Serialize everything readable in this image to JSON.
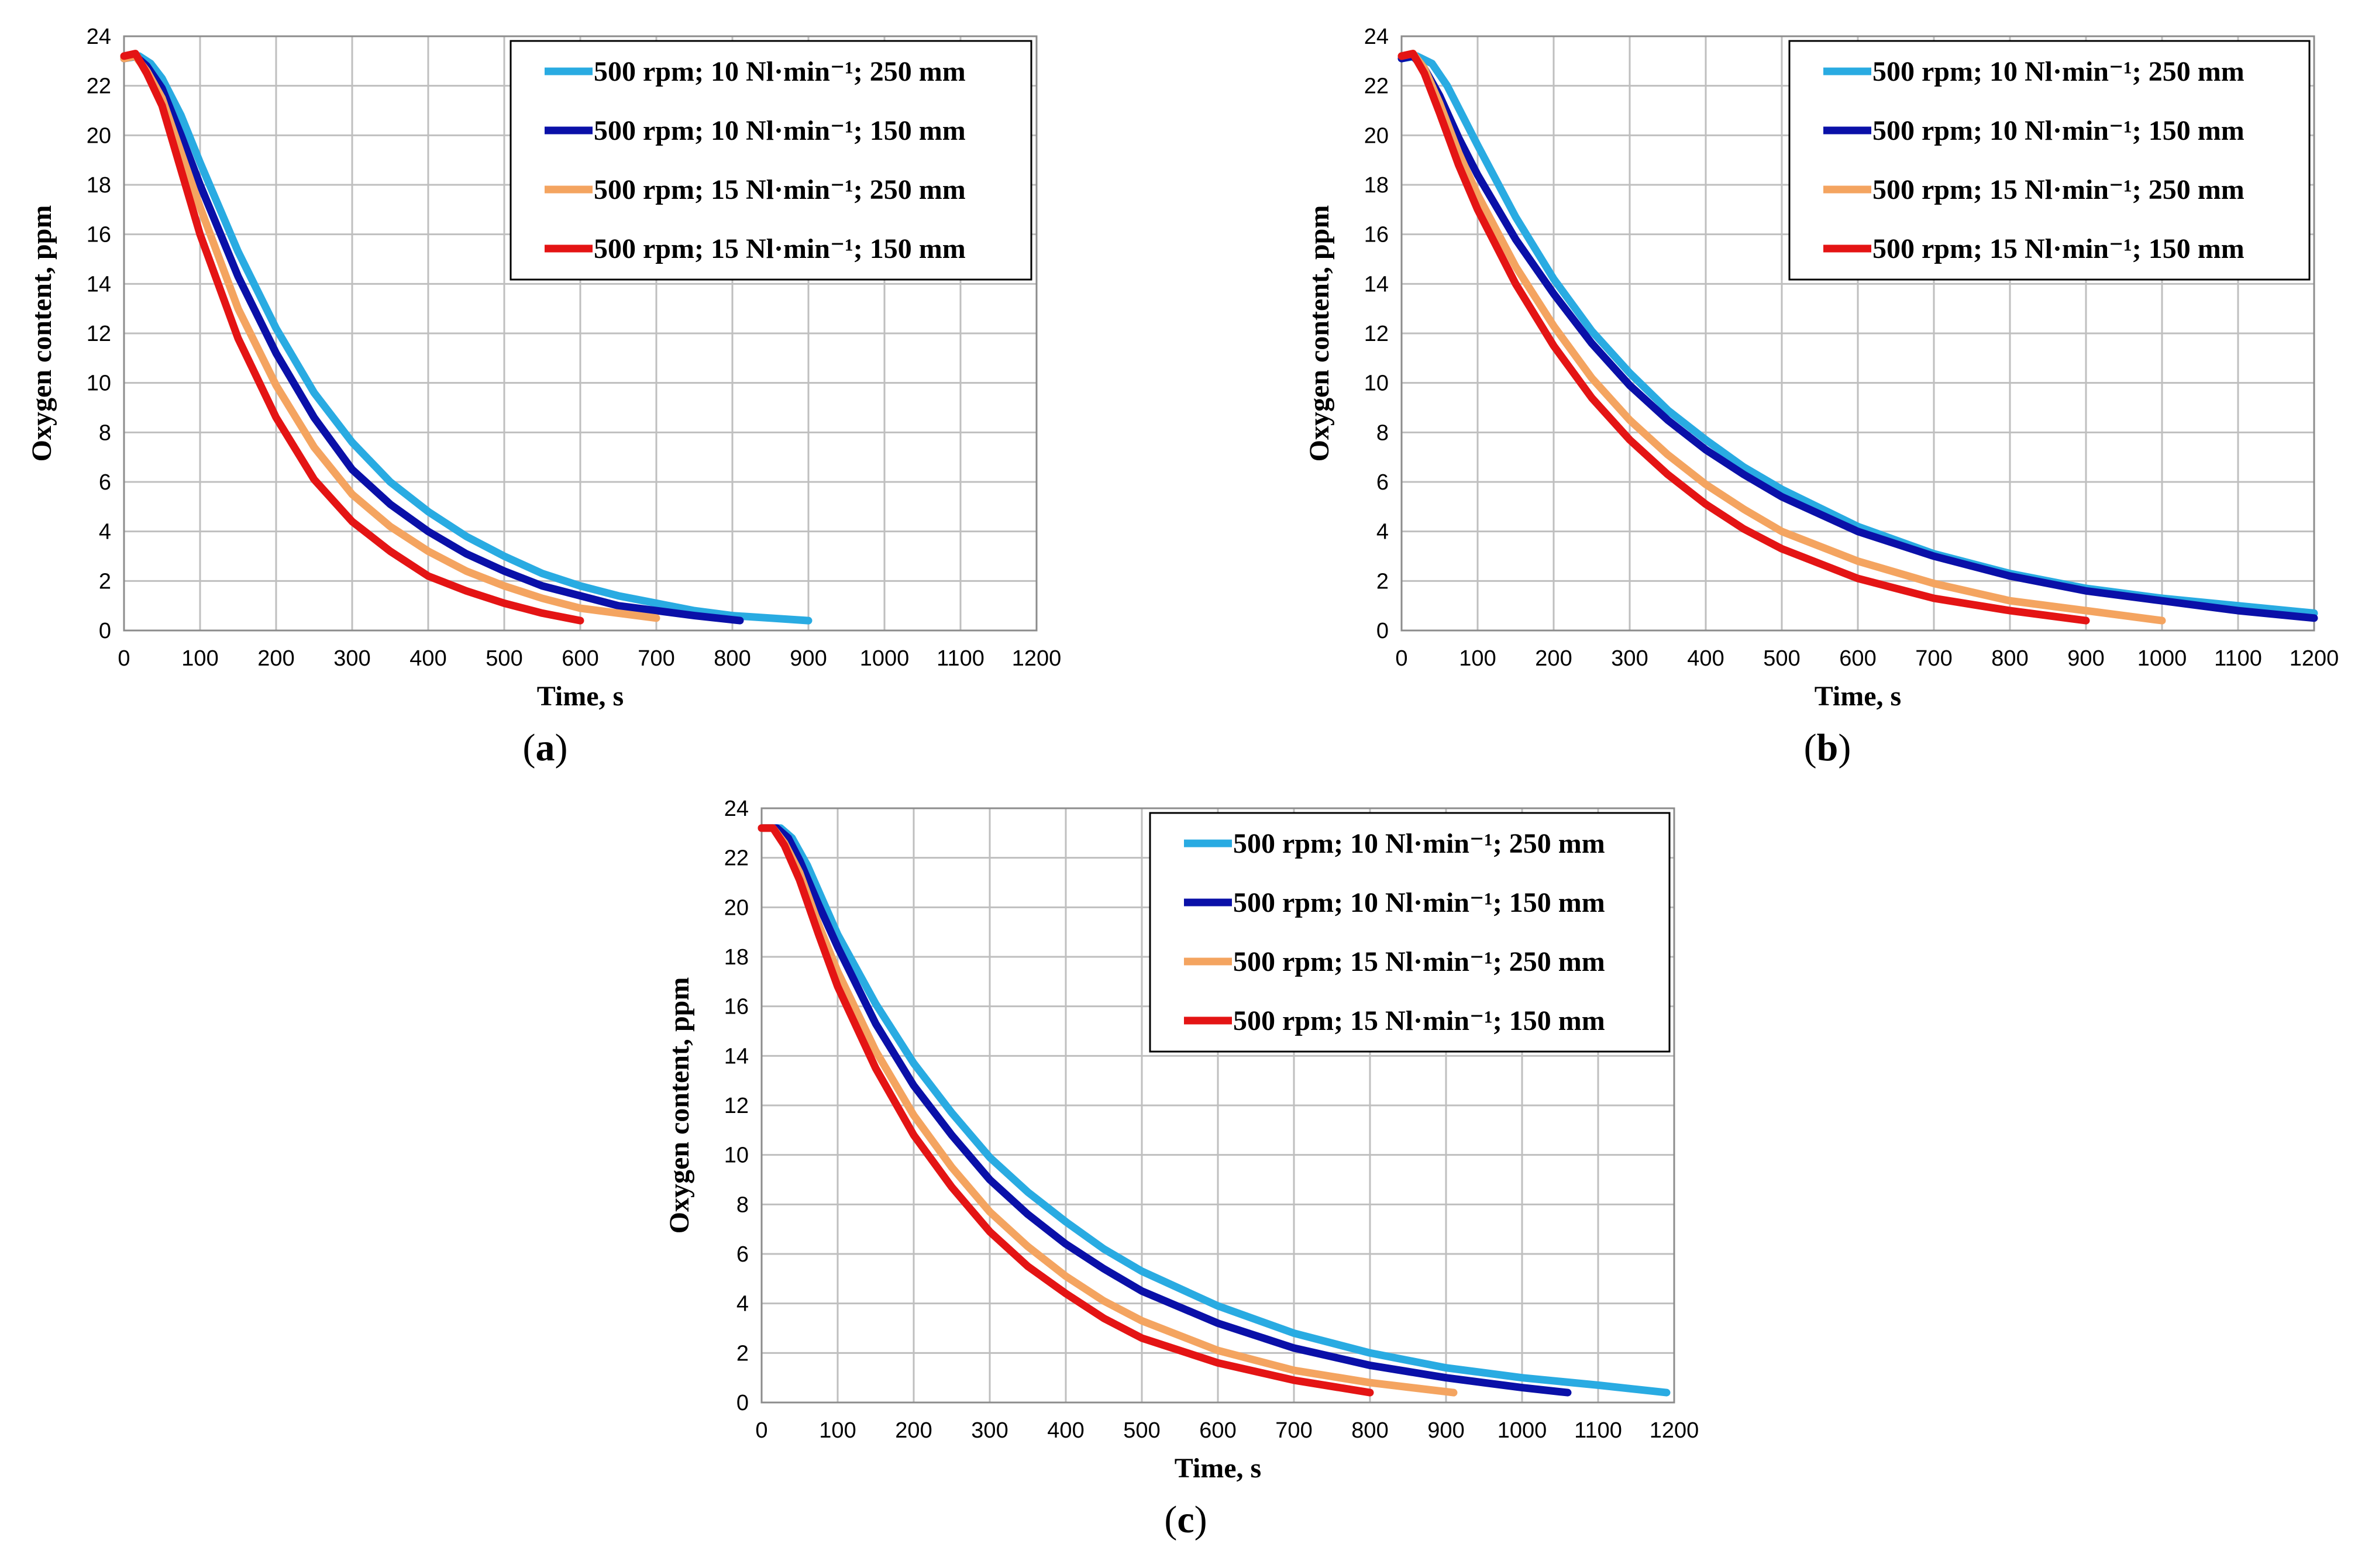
{
  "figure": {
    "colors": {
      "s1": "#29ABE2",
      "s2": "#0A10A8",
      "s3": "#F4A460",
      "s4": "#E41414",
      "grid": "#BFBFBF",
      "frame": "#8C8C8C"
    }
  },
  "chart_data": [
    {
      "id": "a",
      "type": "line",
      "panel_label": "a",
      "xlabel": "Time, s",
      "ylabel": "Oxygen content, ppm",
      "xlim": [
        0,
        1200
      ],
      "ylim": [
        0,
        24
      ],
      "xticks": [
        0,
        100,
        200,
        300,
        400,
        500,
        600,
        700,
        800,
        900,
        1000,
        1100,
        1200
      ],
      "yticks": [
        0,
        2,
        4,
        6,
        8,
        10,
        12,
        14,
        16,
        18,
        20,
        22,
        24
      ],
      "grid": true,
      "legend_position": "top-right",
      "series": [
        {
          "name": "500 rpm; 10 Nl·min⁻¹; 250 mm",
          "color_key": "s1",
          "x": [
            0,
            20,
            35,
            50,
            75,
            100,
            150,
            200,
            250,
            300,
            350,
            400,
            450,
            500,
            550,
            600,
            650,
            700,
            750,
            800,
            850,
            900
          ],
          "y": [
            23.1,
            23.2,
            22.9,
            22.3,
            20.8,
            18.9,
            15.3,
            12.2,
            9.6,
            7.6,
            6.0,
            4.8,
            3.8,
            3.0,
            2.3,
            1.8,
            1.4,
            1.1,
            0.8,
            0.6,
            0.5,
            0.4
          ]
        },
        {
          "name": "500 rpm; 10 Nl·min⁻¹; 150 mm",
          "color_key": "s2",
          "x": [
            0,
            15,
            30,
            50,
            75,
            100,
            150,
            200,
            250,
            300,
            350,
            400,
            450,
            500,
            550,
            600,
            650,
            700,
            750,
            810
          ],
          "y": [
            23.1,
            23.2,
            22.8,
            21.9,
            20.0,
            18.0,
            14.3,
            11.2,
            8.6,
            6.5,
            5.1,
            4.0,
            3.1,
            2.4,
            1.8,
            1.4,
            1.0,
            0.8,
            0.6,
            0.4
          ]
        },
        {
          "name": "500 rpm; 15 Nl·min⁻¹; 250 mm",
          "color_key": "s3",
          "x": [
            0,
            15,
            30,
            50,
            75,
            100,
            150,
            200,
            250,
            300,
            350,
            400,
            450,
            500,
            550,
            600,
            650,
            700
          ],
          "y": [
            23.1,
            23.2,
            22.6,
            21.5,
            19.3,
            17.1,
            13.0,
            9.9,
            7.4,
            5.5,
            4.2,
            3.2,
            2.4,
            1.8,
            1.3,
            0.9,
            0.7,
            0.5
          ]
        },
        {
          "name": "500 rpm; 15 Nl·min⁻¹; 150 mm",
          "color_key": "s4",
          "x": [
            0,
            15,
            30,
            50,
            75,
            100,
            150,
            200,
            250,
            300,
            350,
            400,
            450,
            500,
            550,
            600
          ],
          "y": [
            23.2,
            23.3,
            22.5,
            21.2,
            18.6,
            16.0,
            11.8,
            8.6,
            6.1,
            4.4,
            3.2,
            2.2,
            1.6,
            1.1,
            0.7,
            0.4
          ]
        }
      ]
    },
    {
      "id": "b",
      "type": "line",
      "panel_label": "b",
      "xlabel": "Time, s",
      "ylabel": "Oxygen content, ppm",
      "xlim": [
        0,
        1200
      ],
      "ylim": [
        0,
        24
      ],
      "xticks": [
        0,
        100,
        200,
        300,
        400,
        500,
        600,
        700,
        800,
        900,
        1000,
        1100,
        1200
      ],
      "yticks": [
        0,
        2,
        4,
        6,
        8,
        10,
        12,
        14,
        16,
        18,
        20,
        22,
        24
      ],
      "grid": true,
      "legend_position": "top-right",
      "series": [
        {
          "name": "500 rpm; 10 Nl·min⁻¹; 250 mm",
          "color_key": "s1",
          "x": [
            0,
            20,
            40,
            60,
            80,
            100,
            150,
            200,
            250,
            300,
            350,
            400,
            450,
            500,
            600,
            700,
            800,
            900,
            1000,
            1100,
            1200
          ],
          "y": [
            23.1,
            23.2,
            22.9,
            22.0,
            20.8,
            19.6,
            16.7,
            14.2,
            12.1,
            10.4,
            8.9,
            7.7,
            6.6,
            5.7,
            4.2,
            3.1,
            2.3,
            1.7,
            1.3,
            1.0,
            0.7
          ]
        },
        {
          "name": "500 rpm; 10 Nl·min⁻¹; 150 mm",
          "color_key": "s2",
          "x": [
            0,
            15,
            30,
            50,
            75,
            100,
            150,
            200,
            250,
            300,
            350,
            400,
            450,
            500,
            600,
            700,
            800,
            900,
            1000,
            1100,
            1200
          ],
          "y": [
            23.1,
            23.2,
            22.7,
            21.6,
            19.9,
            18.4,
            15.8,
            13.6,
            11.6,
            9.9,
            8.5,
            7.3,
            6.3,
            5.4,
            4.0,
            3.0,
            2.2,
            1.6,
            1.2,
            0.8,
            0.5
          ]
        },
        {
          "name": "500 rpm; 15 Nl·min⁻¹; 250 mm",
          "color_key": "s3",
          "x": [
            0,
            15,
            30,
            50,
            75,
            100,
            150,
            200,
            250,
            300,
            350,
            400,
            450,
            500,
            600,
            700,
            800,
            900,
            1000
          ],
          "y": [
            23.2,
            23.3,
            22.7,
            21.3,
            19.3,
            17.6,
            14.7,
            12.3,
            10.2,
            8.5,
            7.1,
            5.9,
            4.9,
            4.0,
            2.8,
            1.9,
            1.2,
            0.8,
            0.4
          ]
        },
        {
          "name": "500 rpm; 15 Nl·min⁻¹; 150 mm",
          "color_key": "s4",
          "x": [
            0,
            15,
            30,
            50,
            75,
            100,
            150,
            200,
            250,
            300,
            350,
            400,
            450,
            500,
            600,
            700,
            800,
            900
          ],
          "y": [
            23.2,
            23.3,
            22.5,
            20.9,
            18.8,
            17.0,
            14.0,
            11.5,
            9.4,
            7.7,
            6.3,
            5.1,
            4.1,
            3.3,
            2.1,
            1.3,
            0.8,
            0.4
          ]
        }
      ]
    },
    {
      "id": "c",
      "type": "line",
      "panel_label": "c",
      "xlabel": "Time, s",
      "ylabel": "Oxygen content, ppm",
      "xlim": [
        0,
        1200
      ],
      "ylim": [
        0,
        24
      ],
      "xticks": [
        0,
        100,
        200,
        300,
        400,
        500,
        600,
        700,
        800,
        900,
        1000,
        1100,
        1200
      ],
      "yticks": [
        0,
        2,
        4,
        6,
        8,
        10,
        12,
        14,
        16,
        18,
        20,
        22,
        24
      ],
      "grid": true,
      "legend_position": "top-right",
      "series": [
        {
          "name": "500 rpm; 10 Nl·min⁻¹; 250 mm",
          "color_key": "s1",
          "x": [
            0,
            25,
            40,
            60,
            80,
            100,
            150,
            200,
            250,
            300,
            350,
            400,
            450,
            500,
            600,
            700,
            800,
            900,
            1000,
            1100,
            1190
          ],
          "y": [
            23.2,
            23.2,
            22.8,
            21.7,
            20.3,
            18.9,
            16.1,
            13.7,
            11.7,
            9.9,
            8.5,
            7.3,
            6.2,
            5.3,
            3.9,
            2.8,
            2.0,
            1.4,
            1.0,
            0.7,
            0.4
          ]
        },
        {
          "name": "500 rpm; 10 Nl·min⁻¹; 150 mm",
          "color_key": "s2",
          "x": [
            0,
            20,
            35,
            50,
            75,
            100,
            150,
            200,
            250,
            300,
            350,
            400,
            450,
            500,
            600,
            700,
            800,
            900,
            1000,
            1060
          ],
          "y": [
            23.2,
            23.2,
            22.8,
            21.9,
            20.1,
            18.4,
            15.3,
            12.8,
            10.8,
            9.0,
            7.6,
            6.4,
            5.4,
            4.5,
            3.2,
            2.2,
            1.5,
            1.0,
            0.6,
            0.4
          ]
        },
        {
          "name": "500 rpm; 15 Nl·min⁻¹; 250 mm",
          "color_key": "s3",
          "x": [
            0,
            15,
            30,
            50,
            75,
            100,
            150,
            200,
            250,
            300,
            350,
            400,
            450,
            500,
            600,
            700,
            800,
            910
          ],
          "y": [
            23.2,
            23.2,
            22.6,
            21.4,
            19.3,
            17.4,
            14.2,
            11.6,
            9.5,
            7.7,
            6.3,
            5.1,
            4.1,
            3.3,
            2.1,
            1.3,
            0.8,
            0.4
          ]
        },
        {
          "name": "500 rpm; 15 Nl·min⁻¹; 150 mm",
          "color_key": "s4",
          "x": [
            0,
            15,
            30,
            50,
            75,
            100,
            150,
            200,
            250,
            300,
            350,
            400,
            450,
            500,
            600,
            700,
            800
          ],
          "y": [
            23.2,
            23.2,
            22.5,
            21.1,
            18.9,
            16.8,
            13.5,
            10.8,
            8.7,
            6.9,
            5.5,
            4.4,
            3.4,
            2.6,
            1.6,
            0.9,
            0.4
          ]
        }
      ]
    }
  ]
}
